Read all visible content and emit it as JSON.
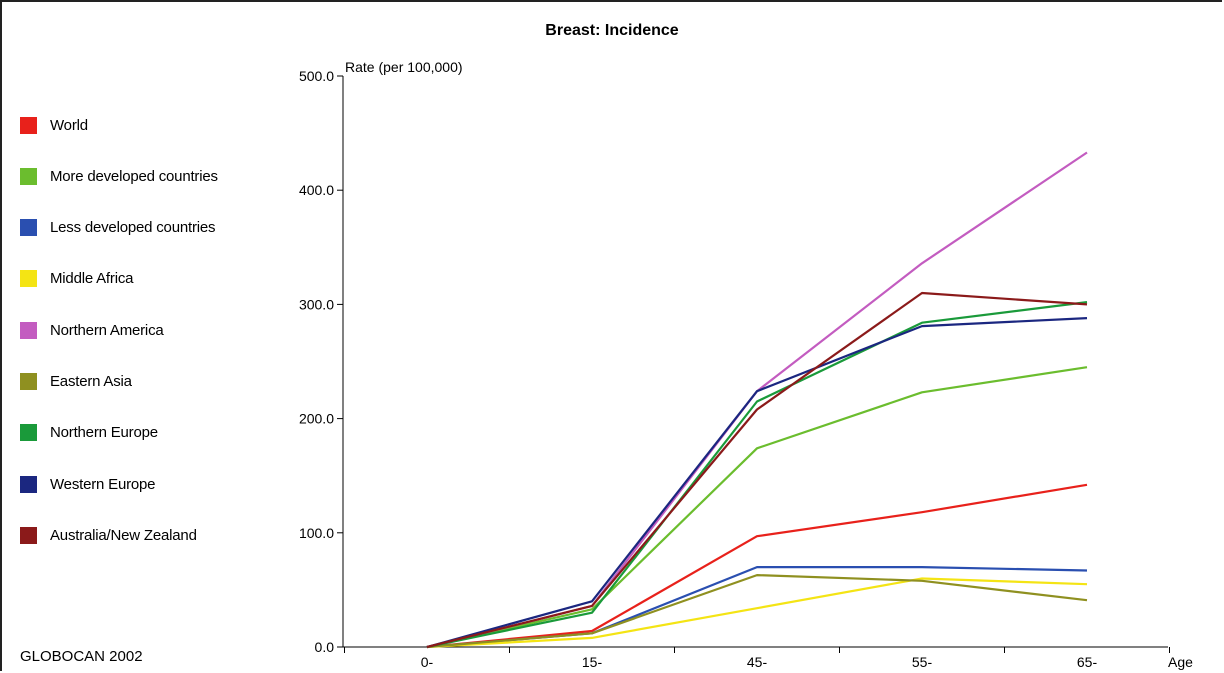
{
  "chart_data": {
    "type": "line",
    "title": "Breast: Incidence",
    "xlabel": "Age",
    "ylabel": "Rate (per 100,000)",
    "categories": [
      "0-",
      "15-",
      "45-",
      "55-",
      "65-"
    ],
    "yticks": [
      "0.0",
      "100.0",
      "200.0",
      "300.0",
      "400.0",
      "500.0"
    ],
    "ylim": [
      0,
      500
    ],
    "grid": false,
    "legend_position": "left",
    "series": [
      {
        "name": "World",
        "color": "#e8211b",
        "values": [
          0,
          14,
          97,
          118,
          142
        ]
      },
      {
        "name": "More developed countries",
        "color": "#6bbd2e",
        "values": [
          0,
          33,
          174,
          223,
          245
        ]
      },
      {
        "name": "Less developed countries",
        "color": "#2a4fb0",
        "values": [
          0,
          12,
          70,
          70,
          67
        ]
      },
      {
        "name": "Middle Africa",
        "color": "#f4e414",
        "values": [
          0,
          8,
          34,
          60,
          55
        ]
      },
      {
        "name": "Northern America",
        "color": "#c35cc0",
        "values": [
          0,
          36,
          224,
          336,
          433
        ]
      },
      {
        "name": "Eastern Asia",
        "color": "#8f9020",
        "values": [
          0,
          12,
          63,
          58,
          41
        ]
      },
      {
        "name": "Northern Europe",
        "color": "#1a9a3a",
        "values": [
          0,
          30,
          215,
          284,
          302
        ]
      },
      {
        "name": "Western Europe",
        "color": "#1b2780",
        "values": [
          0,
          40,
          224,
          281,
          288
        ]
      },
      {
        "name": "Australia/New Zealand",
        "color": "#8b1a1a",
        "values": [
          0,
          36,
          208,
          310,
          300
        ]
      }
    ]
  },
  "source_note": "GLOBOCAN 2002"
}
